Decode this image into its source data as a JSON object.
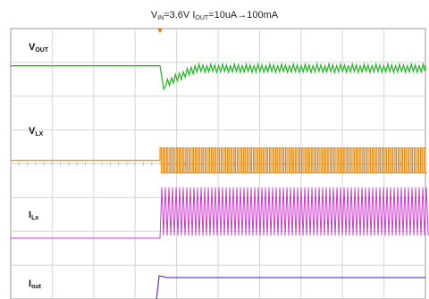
{
  "title": {
    "v": "V",
    "v_sub": "IN",
    "v_val": "=3.6V ",
    "i": "I",
    "i_sub": "OUT",
    "i_val": "=10uA→100mA"
  },
  "chart_data": {
    "type": "line",
    "title": "VIN=3.6V IOUT=10uA→100mA",
    "grid": true,
    "load_step_division": 3.6,
    "x_divisions": 10,
    "y_divisions": 8,
    "series": [
      {
        "name": "VOUT",
        "label_main": "V",
        "label_sub": "OUT",
        "color": "#2db52d",
        "baseline_div": 1.1,
        "before": "flat",
        "after": "ripple-with-undershoot"
      },
      {
        "name": "VLX",
        "label_main": "V",
        "label_sub": "LX",
        "color": "#e08a1a",
        "baseline_div": 3.9,
        "before": "flat",
        "after": "switching"
      },
      {
        "name": "ILX",
        "label_main": "I",
        "label_sub": "Lx",
        "color": "#c63ec6",
        "baseline_div": 6.2,
        "before": "flat",
        "after": "switching"
      },
      {
        "name": "IOUT",
        "label_main": "I",
        "label_sub": "out",
        "color": "#6a3fcf",
        "baseline_div": 8.0,
        "before": "flat",
        "after": "step-up"
      }
    ]
  }
}
